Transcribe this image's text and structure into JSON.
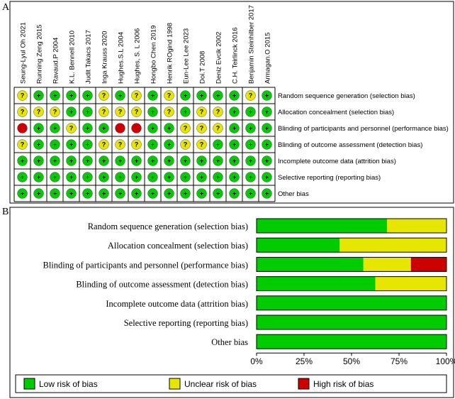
{
  "panelA": {
    "label": "A",
    "studies": [
      "Seung-Lyul Oh 2021",
      "Running Zeng 2015",
      "Ravaud.P 2004",
      "K.L. Bennell 2010",
      "Judit Takacs 2017",
      "Inga Krauss 2020",
      "Hughes.S.L 2004",
      "Hughes, S. L 2006",
      "Hongbo Chen 2019",
      "Henrik ROgind 1998",
      "Eun-Lee Lee 2023",
      "Doi.T 2008",
      "Deniz Evcik 2002",
      "C.H. Teirlinck 2016",
      "Benjamin Steinhilber 2017",
      "Armagan.O 2015"
    ],
    "domains": [
      "Random sequence generation (selection bias)",
      "Allocation concealment (selection bias)",
      "Blinding of participants and personnel (performance bias)",
      "Blinding of outcome assessment (detection bias)",
      "Incomplete outcome data (attrition bias)",
      "Selective reporting (reporting bias)",
      "Other bias"
    ],
    "symbols": {
      "low": "+",
      "unclear": "?",
      "high": ""
    }
  },
  "chart_data": [
    {
      "type": "table",
      "rows": [
        [
          "unclear",
          "low",
          "low",
          "low",
          "low",
          "unclear",
          "low",
          "unclear",
          "low",
          "unclear",
          "low",
          "low",
          "low",
          "low",
          "unclear",
          "low"
        ],
        [
          "unclear",
          "unclear",
          "unclear",
          "low",
          "low",
          "unclear",
          "unclear",
          "unclear",
          "low",
          "unclear",
          "low",
          "unclear",
          "unclear",
          "low",
          "low",
          "low"
        ],
        [
          "high",
          "low",
          "low",
          "unclear",
          "low",
          "low",
          "high",
          "high",
          "low",
          "low",
          "unclear",
          "unclear",
          "unclear",
          "low",
          "low",
          "low"
        ],
        [
          "unclear",
          "low",
          "low",
          "low",
          "low",
          "unclear",
          "unclear",
          "unclear",
          "low",
          "low",
          "unclear",
          "unclear",
          "low",
          "low",
          "low",
          "low"
        ],
        [
          "low",
          "low",
          "low",
          "low",
          "low",
          "low",
          "low",
          "low",
          "low",
          "low",
          "low",
          "low",
          "low",
          "low",
          "low",
          "low"
        ],
        [
          "low",
          "low",
          "low",
          "low",
          "low",
          "low",
          "low",
          "low",
          "low",
          "low",
          "low",
          "low",
          "low",
          "low",
          "low",
          "low"
        ],
        [
          "low",
          "low",
          "low",
          "low",
          "low",
          "low",
          "low",
          "low",
          "low",
          "low",
          "low",
          "low",
          "low",
          "low",
          "low",
          "low"
        ]
      ],
      "colors": {
        "low": "#00cc00",
        "unclear": "#e6e600",
        "high": "#cc0000"
      }
    },
    {
      "type": "bar",
      "label": "B",
      "orientation": "horizontal",
      "stacked": true,
      "categories": [
        "Random sequence generation (selection bias)",
        "Allocation concealment (selection bias)",
        "Blinding of participants and personnel (performance bias)",
        "Blinding of outcome assessment (detection bias)",
        "Incomplete outcome data (attrition bias)",
        "Selective reporting (reporting bias)",
        "Other bias"
      ],
      "series": [
        {
          "name": "Low risk of bias",
          "color": "#00cc00",
          "values": [
            68.75,
            43.75,
            56.25,
            62.5,
            100,
            100,
            100
          ]
        },
        {
          "name": "Unclear risk of bias",
          "color": "#e6e600",
          "values": [
            31.25,
            56.25,
            25,
            37.5,
            0,
            0,
            0
          ]
        },
        {
          "name": "High risk of bias",
          "color": "#cc0000",
          "values": [
            0,
            0,
            18.75,
            0,
            0,
            0,
            0
          ]
        }
      ],
      "xlim": [
        0,
        100
      ],
      "ticks": [
        "0%",
        "25%",
        "50%",
        "75%",
        "100%"
      ],
      "legend_position": "bottom"
    }
  ]
}
